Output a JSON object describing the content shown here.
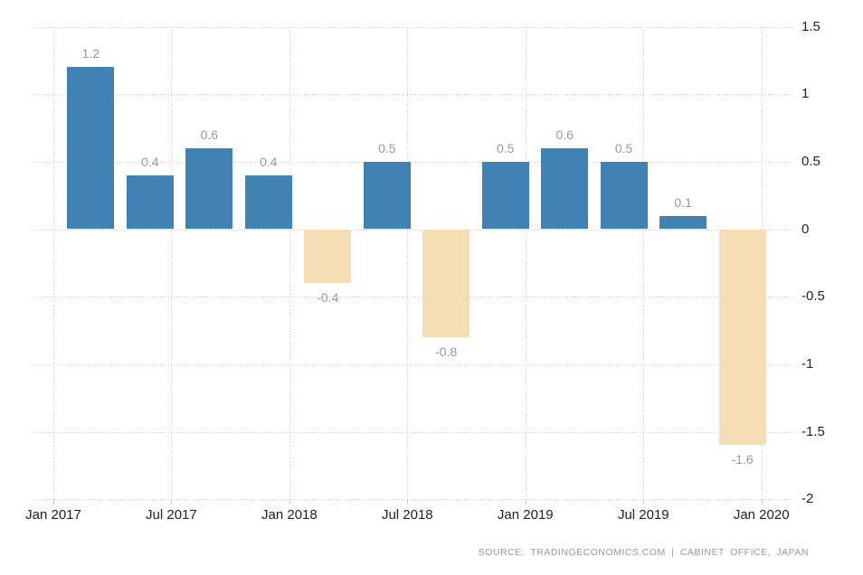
{
  "source_text": "SOURCE: TRADINGECONOMICS.COM | CABINET OFFICE, JAPAN",
  "chart_data": {
    "type": "bar",
    "title": "",
    "xlabel": "",
    "ylabel": "",
    "x": [
      "2017 Q1",
      "2017 Q2",
      "2017 Q3",
      "2017 Q4",
      "2018 Q1",
      "2018 Q2",
      "2018 Q3",
      "2018 Q4",
      "2019 Q1",
      "2019 Q2",
      "2019 Q3",
      "2019 Q4"
    ],
    "values": [
      1.2,
      0.4,
      0.6,
      0.4,
      -0.4,
      0.5,
      -0.8,
      0.5,
      0.6,
      0.5,
      0.1,
      -1.6
    ],
    "x_tick_labels": [
      "Jan 2017",
      "Jul 2017",
      "Jan 2018",
      "Jul 2018",
      "Jan 2019",
      "Jul 2019",
      "Jan 2020"
    ],
    "y_ticks": [
      1.5,
      1,
      0.5,
      0,
      -0.5,
      -1,
      -1.5,
      -2
    ],
    "y_tick_labels": [
      "1.5",
      "1",
      "0.5",
      "0",
      "-0.5",
      "-1",
      "-1.5",
      "-2"
    ],
    "ylim": [
      -2,
      1.5
    ],
    "grid": true,
    "legend": "none",
    "colors": {
      "positive_bar": "#4182b4",
      "negative_bar": "#f5deb3",
      "data_label": "#999999",
      "axis_label": "#222222",
      "gridline": "#cccccc",
      "source_text": "#999999"
    }
  }
}
